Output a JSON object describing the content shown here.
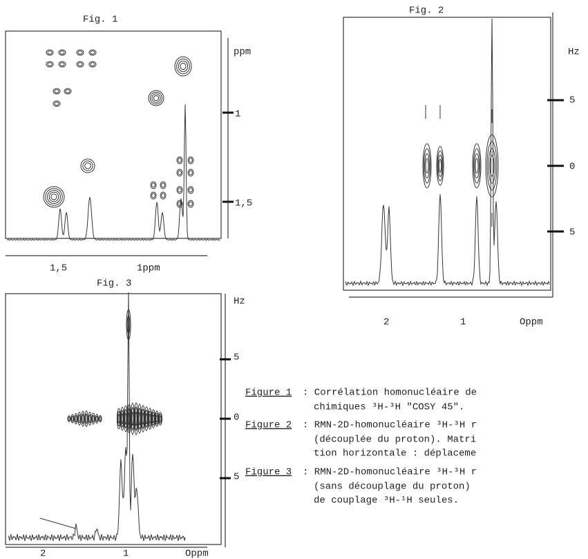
{
  "fig1": {
    "title": "Fig. 1",
    "unit": "ppm",
    "right_ticks": [
      "1",
      "1,5"
    ],
    "bottom_ticks": [
      "1,5",
      "1ppm"
    ]
  },
  "fig2": {
    "title": "Fig. 2",
    "unit": "Hz",
    "right_ticks": [
      "5",
      "0",
      "5"
    ],
    "bottom_ticks": [
      "2",
      "1",
      "Oppm"
    ]
  },
  "fig3": {
    "title": "Fig. 3",
    "unit": "Hz",
    "right_ticks": [
      "5",
      "0",
      "5"
    ],
    "bottom_ticks": [
      "2",
      "1",
      "Oppm"
    ]
  },
  "captions": [
    {
      "label": "Figure 1",
      "lines": [
        ": Corrélation homonucléaire de",
        "chimiques ³H-³H \"COSY 45\"."
      ]
    },
    {
      "label": "Figure 2",
      "lines": [
        ": RMN-2D-homonucléaire ³H-³H r",
        "(découplée du proton). Matri",
        "tion horizontale : déplaceme"
      ]
    },
    {
      "label": "Figure 3",
      "lines": [
        ": RMN-2D-homonucléaire ³H-³H r",
        "(sans découplage du proton)",
        "de couplage ³H-¹H seules."
      ]
    }
  ]
}
